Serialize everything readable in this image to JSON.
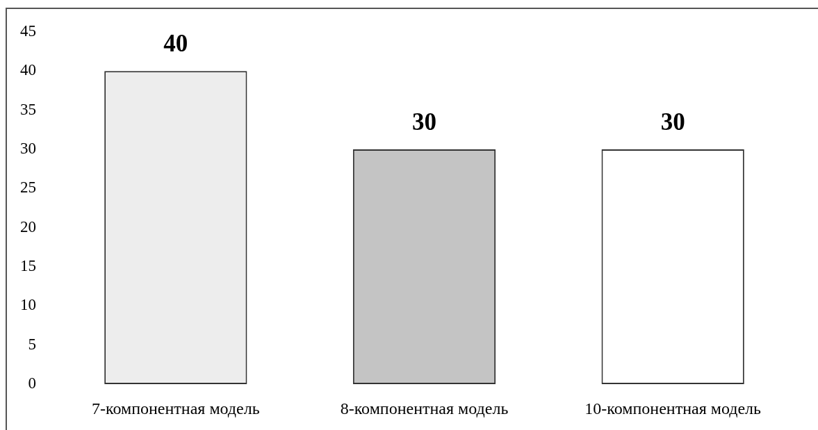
{
  "chart_data": {
    "type": "bar",
    "categories": [
      "7-компонентная модель",
      "8-компонентная модель",
      "10-компонентная модель"
    ],
    "values": [
      40,
      30,
      30
    ],
    "colors": [
      "#ededed",
      "#c4c4c4",
      "#ffffff"
    ],
    "ylim": [
      0,
      45
    ],
    "yticks": [
      0,
      5,
      10,
      15,
      20,
      25,
      30,
      35,
      40,
      45
    ],
    "data_labels": true
  }
}
